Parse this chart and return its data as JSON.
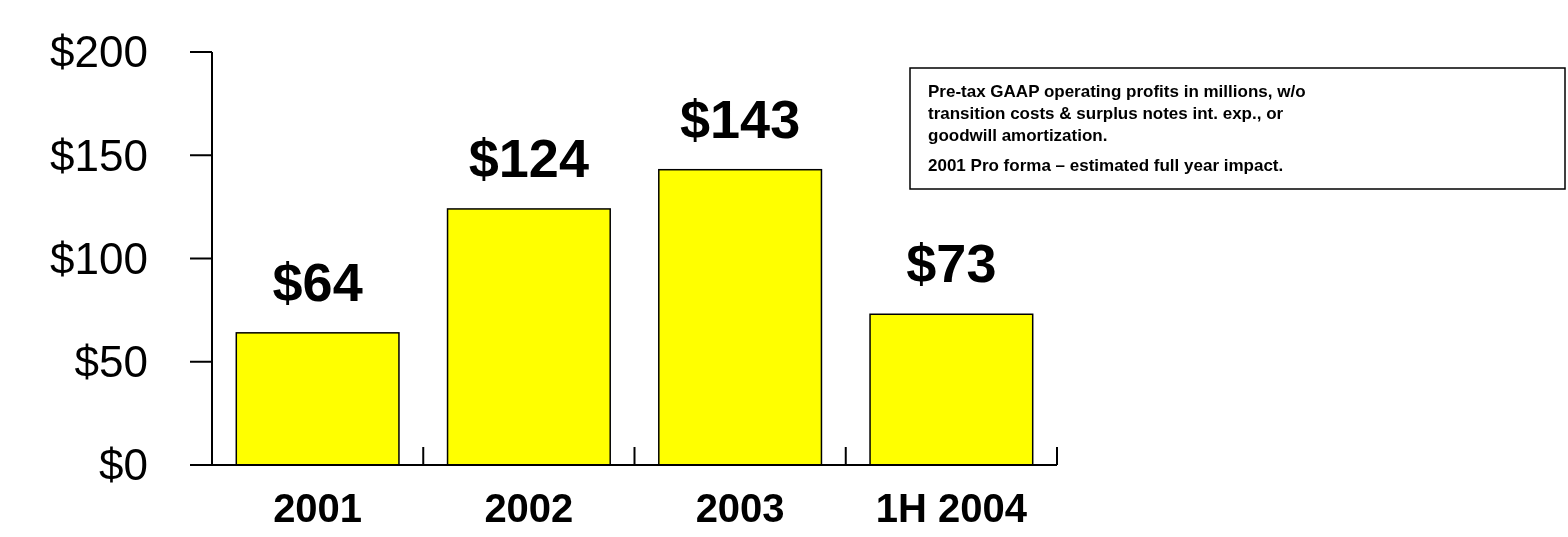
{
  "chart_data": {
    "type": "bar",
    "categories": [
      "2001",
      "2002",
      "2003",
      "1H 2004"
    ],
    "values": [
      64,
      124,
      143,
      73
    ],
    "value_labels": [
      "$64",
      "$124",
      "$143",
      "$73"
    ],
    "color": "#ffff00",
    "ylim": [
      0,
      200
    ],
    "yticks": [
      {
        "value": 0,
        "label": "$0"
      },
      {
        "value": 50,
        "label": "$50"
      },
      {
        "value": 100,
        "label": "$100"
      },
      {
        "value": 150,
        "label": "$150"
      },
      {
        "value": 200,
        "label": "$200"
      }
    ],
    "grid": false,
    "annotations": [
      "Pre-tax GAAP operating profits in millions, w/o transition costs & surplus notes int. exp., or goodwill amortization.",
      "2001 Pro forma – estimated full year impact."
    ]
  }
}
